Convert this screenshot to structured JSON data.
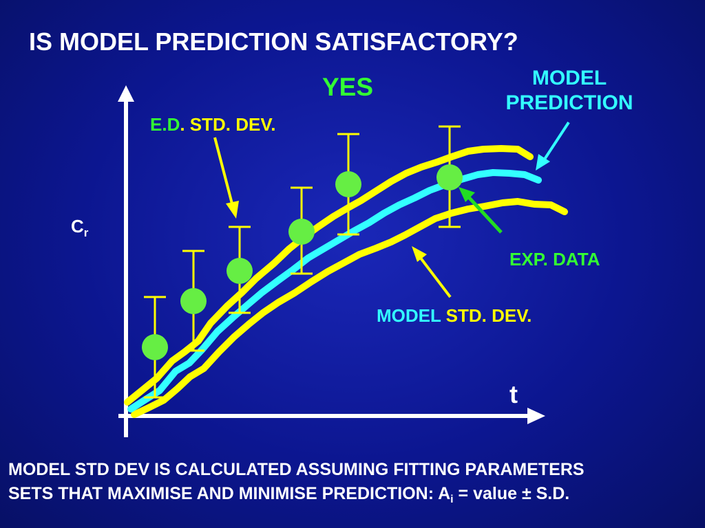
{
  "title": "IS MODEL PREDICTION SATISFACTORY?",
  "verdict": "YES",
  "labels": {
    "model_prediction_line1": "MODEL",
    "model_prediction_line2": "PREDICTION",
    "ed_prefix": "E.D",
    "ed_suffix": ". STD. DEV.",
    "exp_data": "EXP. DATA",
    "model_sd_prefix": "MODEL",
    "model_sd_suffix": " STD. DEV.",
    "y_axis": "C",
    "y_axis_sub": "r",
    "x_axis": "t"
  },
  "note": {
    "line1": "MODEL STD DEV IS CALCULATED ASSUMING FITTING PARAMETERS",
    "line2_prefix": "SETS THAT MAXIMISE AND MINIMISE PREDICTION: A",
    "line2_sub": "i",
    "line2_suffix": " = value ± S.D."
  },
  "colors": {
    "model_prediction": "#33ffff",
    "model_std_dev": "#ffff00",
    "exp_data": "#66ee44",
    "error_bars": "#ffff00",
    "axes": "#ffffff"
  }
}
